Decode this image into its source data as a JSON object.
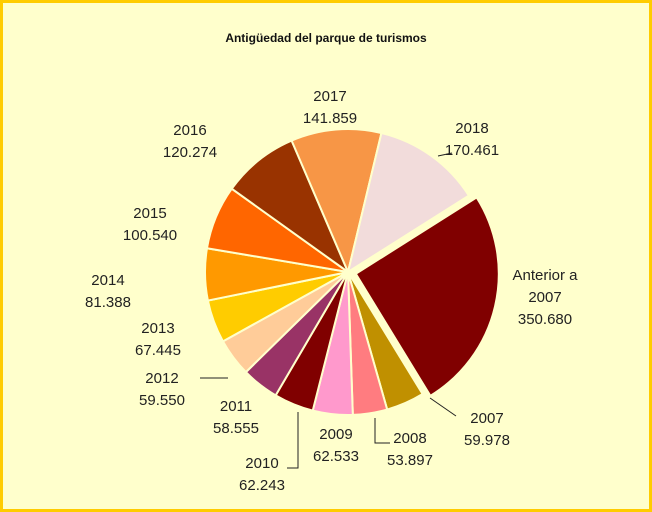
{
  "chart_data": {
    "type": "pie",
    "title": "Antigüedad del parque de turismos",
    "categories": [
      "Anterior a 2007",
      "2007",
      "2008",
      "2009",
      "2010",
      "2011",
      "2012",
      "2013",
      "2014",
      "2015",
      "2016",
      "2017",
      "2018"
    ],
    "values": [
      350680,
      59978,
      53897,
      62533,
      62243,
      58555,
      59550,
      67445,
      81388,
      100540,
      120274,
      141859,
      170461
    ],
    "value_labels": [
      "350.680",
      "59.978",
      "53.897",
      "62.533",
      "62.243",
      "58.555",
      "59.550",
      "67.445",
      "81.388",
      "100.540",
      "120.274",
      "141.859",
      "170.461"
    ],
    "colors": [
      "#800000",
      "#c09000",
      "#ff7c80",
      "#ff99cc",
      "#800000",
      "#993366",
      "#ffcc99",
      "#ffcc00",
      "#ff9900",
      "#ff6600",
      "#993300",
      "#f79646",
      "#f2dcdb"
    ]
  }
}
